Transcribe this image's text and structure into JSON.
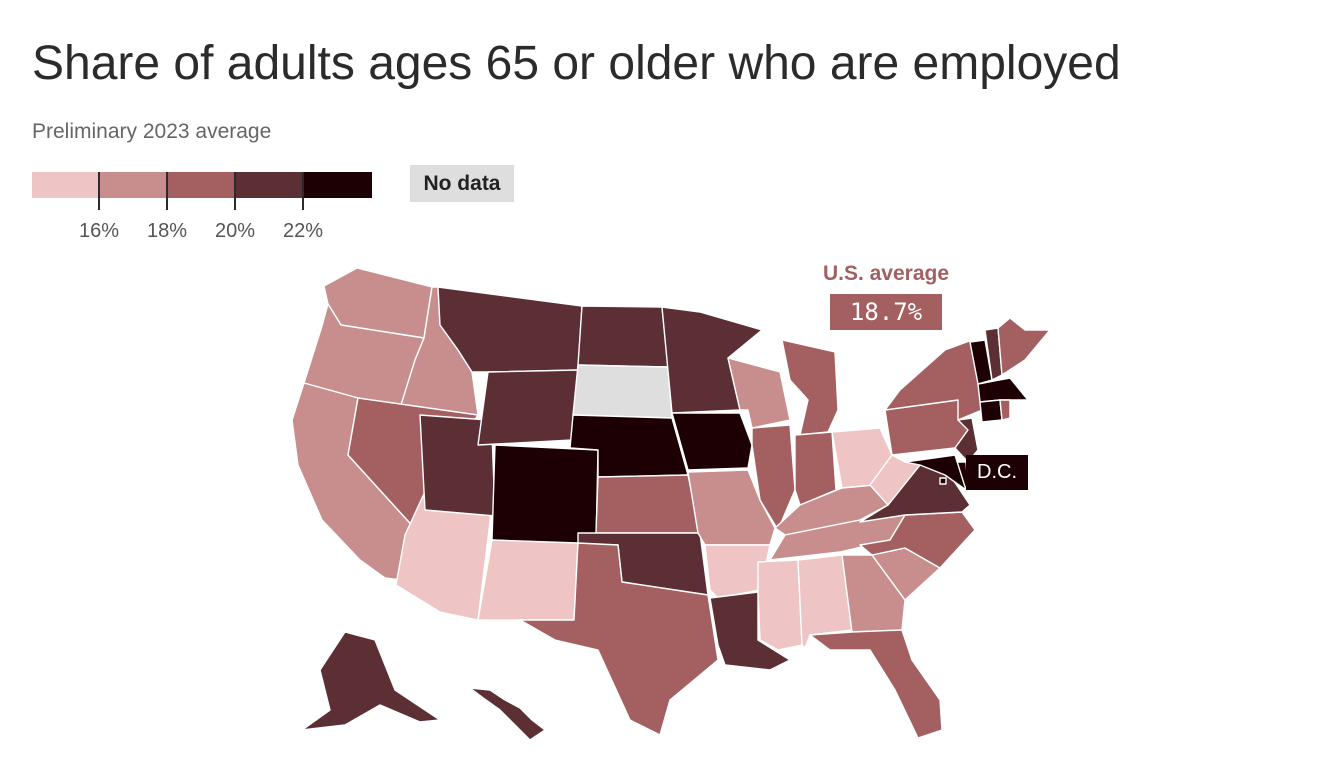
{
  "title": "Share of adults ages 65 or older who are employed",
  "subtitle": "Preliminary 2023 average",
  "legend": {
    "colors": [
      "#efc4c4",
      "#c88d8d",
      "#a46060",
      "#5c2f35",
      "#1d0003"
    ],
    "ticks": [
      "16%",
      "18%",
      "20%",
      "22%"
    ],
    "no_data_label": "No data",
    "no_data_color": "#dedede"
  },
  "annotations": {
    "us_average_label": "U.S. average",
    "us_average_value": "18.7%",
    "dc_label": "D.C."
  },
  "chart_data": {
    "type": "choropleth",
    "bins": [
      "<16%",
      "16–18%",
      "18–20%",
      "20–22%",
      ">22%"
    ],
    "states": {
      "WA": 1,
      "OR": 1,
      "CA": 1,
      "ID": 1,
      "NV": 2,
      "AZ": 0,
      "UT": 3,
      "MT": 3,
      "WY": 3,
      "CO": 4,
      "NM": 0,
      "ND": 3,
      "SD": null,
      "NE": 4,
      "KS": 2,
      "OK": 3,
      "TX": 2,
      "MN": 3,
      "IA": 4,
      "MO": 1,
      "AR": 0,
      "LA": 3,
      "WI": 1,
      "IL": 2,
      "MI": 2,
      "IN": 2,
      "OH": 0,
      "KY": 1,
      "TN": 1,
      "MS": 0,
      "AL": 0,
      "GA": 1,
      "FL": 2,
      "SC": 1,
      "NC": 2,
      "VA": 3,
      "WV": 0,
      "PA": 2,
      "NY": 2,
      "VT": 4,
      "NH": 3,
      "ME": 2,
      "MA": 4,
      "CT": 4,
      "RI": 2,
      "NJ": 3,
      "DE": 4,
      "MD": 4,
      "DC": 4,
      "AK": 3,
      "HI": 3
    }
  }
}
